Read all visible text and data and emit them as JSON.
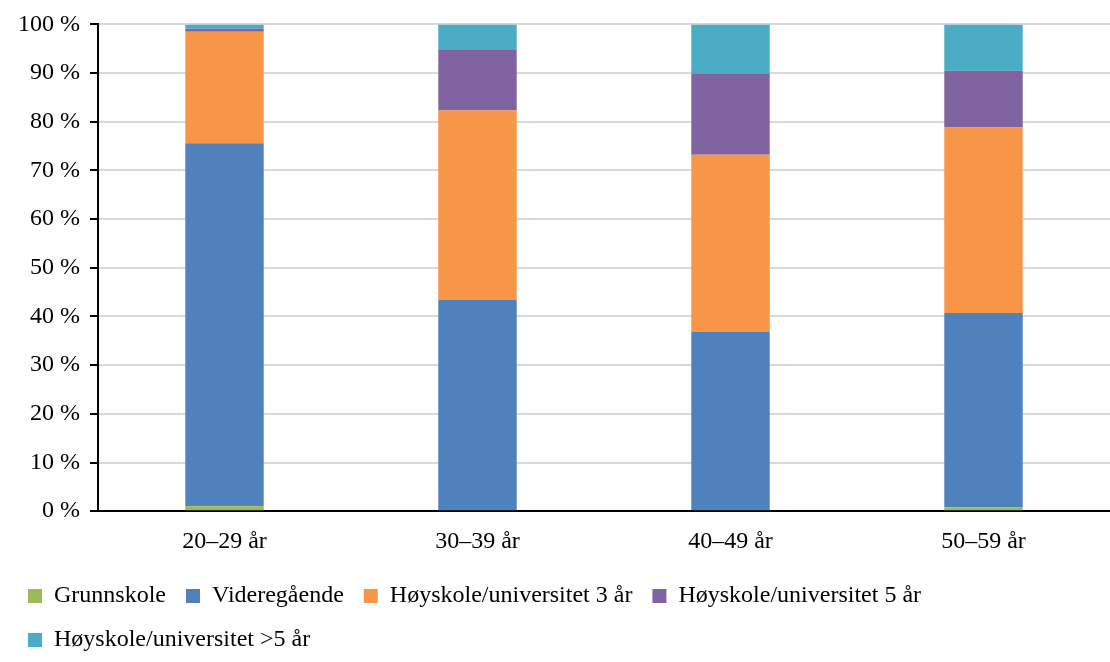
{
  "chart_data": {
    "type": "bar",
    "stacked": true,
    "categories": [
      "20–29 år",
      "30–39 år",
      "40–49 år",
      "50–59 år"
    ],
    "series": [
      {
        "name": "Grunnskole",
        "color": "#9bbb59",
        "values": [
          1.0,
          0,
          0,
          0.8
        ]
      },
      {
        "name": "Videregående",
        "color": "#4f81bd",
        "values": [
          74.6,
          43.4,
          36.8,
          39.9
        ]
      },
      {
        "name": "Høyskole/universitet 3 år",
        "color": "#f79646",
        "values": [
          22.9,
          38.9,
          36.4,
          38.1
        ]
      },
      {
        "name": "Høyskole/universitet 5 år",
        "color": "#8064a2",
        "values": [
          0.6,
          12.6,
          16.6,
          11.7
        ]
      },
      {
        "name": "Høyskole/universitet >5 år",
        "color": "#4bacc6",
        "values": [
          0.9,
          5.1,
          10.2,
          9.5
        ]
      }
    ],
    "ylim": [
      0,
      100
    ],
    "yticks": [
      {
        "value": 0,
        "label": "0 %"
      },
      {
        "value": 10,
        "label": "10 %"
      },
      {
        "value": 20,
        "label": "20 %"
      },
      {
        "value": 30,
        "label": "30 %"
      },
      {
        "value": 40,
        "label": "40 %"
      },
      {
        "value": 50,
        "label": "50 %"
      },
      {
        "value": 60,
        "label": "60 %"
      },
      {
        "value": 70,
        "label": "70 %"
      },
      {
        "value": 80,
        "label": "80 %"
      },
      {
        "value": 90,
        "label": "90 %"
      },
      {
        "value": 100,
        "label": "100 %"
      }
    ],
    "grid": "y",
    "legend": "bottom"
  }
}
